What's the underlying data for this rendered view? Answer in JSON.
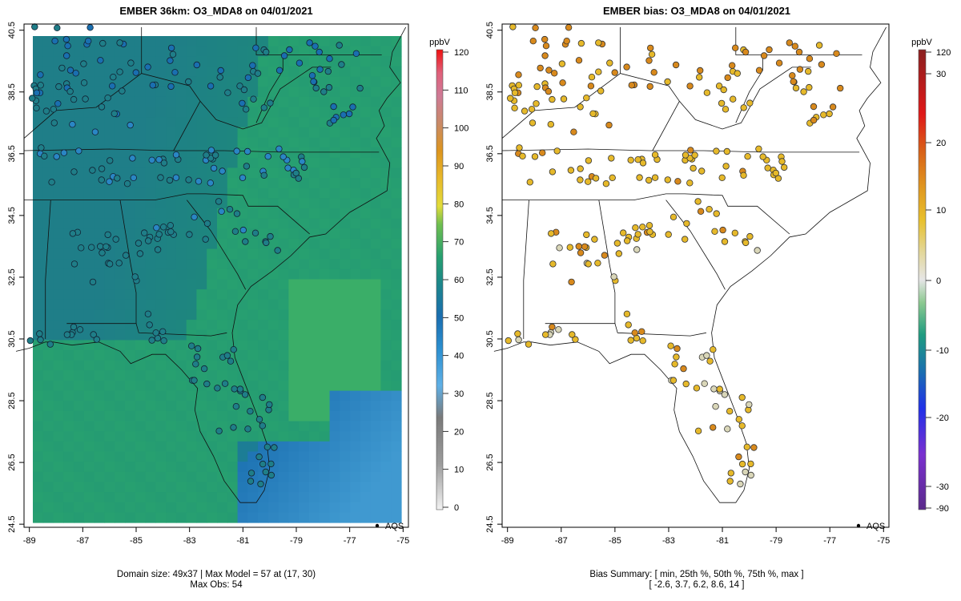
{
  "colors": {
    "ocean_dark": "#1d8a7a",
    "ocean_mid": "#27a070",
    "inland": "#1f7e88",
    "deep_blue": "#1a6fb0",
    "light_blue": "#49a4d8",
    "bias_pos": "#e6b92a",
    "bias_high": "#d8891c",
    "bias_low": "#d9d6b8"
  },
  "chart_data": [
    {
      "type": "heatmap",
      "title": "EMBER 36km: O3_MDA8 on 04/01/2021",
      "x_ticks": [
        "-89",
        "-87",
        "-85",
        "-83",
        "-81",
        "-79",
        "-77",
        "-75"
      ],
      "y_ticks": [
        "24.5",
        "26.5",
        "28.5",
        "30.5",
        "32.5",
        "34.5",
        "36.5",
        "38.5",
        "40.5"
      ],
      "xlim": [
        -89.2,
        -74.8
      ],
      "ylim": [
        24.4,
        40.7
      ],
      "colorbar": {
        "unit": "ppbV",
        "ticks": [
          "0",
          "10",
          "20",
          "30",
          "40",
          "50",
          "60",
          "70",
          "80",
          "90",
          "100",
          "110",
          "120"
        ]
      },
      "legend_label": "AQS",
      "caption_line1": "Domain size: 49x37 | Max Model = 57 at (17, 30)",
      "caption_line2": "Max Obs: 54"
    },
    {
      "type": "scatter",
      "title": "EMBER bias: O3_MDA8 on 04/01/2021",
      "x_ticks": [
        "-89",
        "-87",
        "-85",
        "-83",
        "-81",
        "-79",
        "-77",
        "-75"
      ],
      "y_ticks": [
        "24.5",
        "26.5",
        "28.5",
        "30.5",
        "32.5",
        "34.5",
        "36.5",
        "38.5",
        "40.5"
      ],
      "xlim": [
        -89.2,
        -74.8
      ],
      "ylim": [
        24.4,
        40.7
      ],
      "colorbar": {
        "unit": "ppbV",
        "ticks": [
          "120",
          "30",
          "20",
          "10",
          "0",
          "-10",
          "-20",
          "-30",
          "-90"
        ]
      },
      "legend_label": "AQS",
      "caption_line1": "Bias Summary: [ min, 25th %, 50th %, 75th %, max ]",
      "caption_line2": "[ -2.6,   3.7,   6.2,   8.6,   14 ]",
      "bias_summary": {
        "min": -2.6,
        "p25": 3.7,
        "p50": 6.2,
        "p75": 8.6,
        "max": 14
      }
    }
  ]
}
